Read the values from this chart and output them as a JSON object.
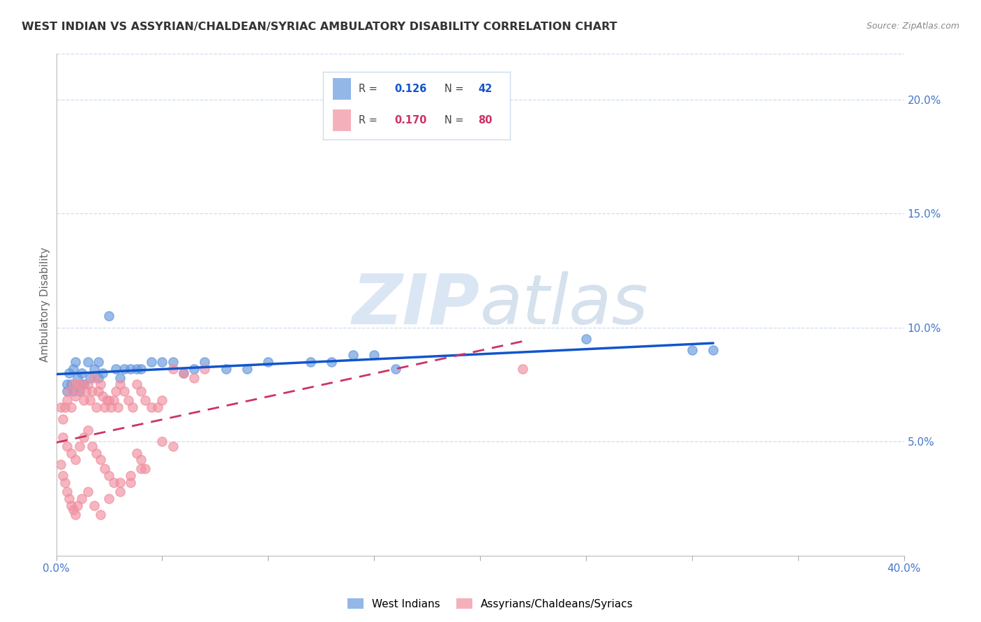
{
  "title": "WEST INDIAN VS ASSYRIAN/CHALDEAN/SYRIAC AMBULATORY DISABILITY CORRELATION CHART",
  "source": "Source: ZipAtlas.com",
  "ylabel": "Ambulatory Disability",
  "xlim": [
    0.0,
    0.4
  ],
  "ylim": [
    0.0,
    0.22
  ],
  "xtick_positions": [
    0.0,
    0.05,
    0.1,
    0.15,
    0.2,
    0.25,
    0.3,
    0.35,
    0.4
  ],
  "xtick_labels": [
    "0.0%",
    "",
    "",
    "",
    "",
    "",
    "",
    "",
    "40.0%"
  ],
  "ytick_positions": [
    0.05,
    0.1,
    0.15,
    0.2
  ],
  "ytick_labels": [
    "5.0%",
    "10.0%",
    "15.0%",
    "20.0%"
  ],
  "blue_R": "0.126",
  "blue_N": "42",
  "pink_R": "0.170",
  "pink_N": "80",
  "blue_color": "#6699dd",
  "pink_color": "#f090a0",
  "blue_line_color": "#1155cc",
  "pink_line_color": "#cc3366",
  "axis_tick_color": "#4477cc",
  "grid_color": "#ccddee",
  "background_color": "#ffffff",
  "watermark_zip": "ZIP",
  "watermark_atlas": "atlas",
  "legend_border_color": "#ccddee",
  "blue_scatter_x": [
    0.005,
    0.006,
    0.007,
    0.008,
    0.009,
    0.01,
    0.011,
    0.012,
    0.013,
    0.015,
    0.016,
    0.018,
    0.02,
    0.022,
    0.025,
    0.028,
    0.03,
    0.032,
    0.035,
    0.038,
    0.04,
    0.045,
    0.05,
    0.055,
    0.06,
    0.065,
    0.07,
    0.08,
    0.09,
    0.1,
    0.12,
    0.13,
    0.14,
    0.15,
    0.16,
    0.25,
    0.3,
    0.31,
    0.005,
    0.008,
    0.012,
    0.02
  ],
  "blue_scatter_y": [
    0.075,
    0.08,
    0.075,
    0.082,
    0.085,
    0.078,
    0.072,
    0.08,
    0.075,
    0.085,
    0.078,
    0.082,
    0.085,
    0.08,
    0.105,
    0.082,
    0.078,
    0.082,
    0.082,
    0.082,
    0.082,
    0.085,
    0.085,
    0.085,
    0.08,
    0.082,
    0.085,
    0.082,
    0.082,
    0.085,
    0.085,
    0.085,
    0.088,
    0.088,
    0.082,
    0.095,
    0.09,
    0.09,
    0.072,
    0.072,
    0.075,
    0.078
  ],
  "pink_scatter_x": [
    0.002,
    0.003,
    0.004,
    0.005,
    0.006,
    0.007,
    0.008,
    0.009,
    0.01,
    0.011,
    0.012,
    0.013,
    0.014,
    0.015,
    0.016,
    0.017,
    0.018,
    0.019,
    0.02,
    0.021,
    0.022,
    0.023,
    0.024,
    0.025,
    0.026,
    0.027,
    0.028,
    0.029,
    0.03,
    0.032,
    0.034,
    0.036,
    0.038,
    0.04,
    0.042,
    0.045,
    0.048,
    0.05,
    0.055,
    0.06,
    0.065,
    0.07,
    0.003,
    0.005,
    0.007,
    0.009,
    0.011,
    0.013,
    0.015,
    0.017,
    0.019,
    0.021,
    0.023,
    0.025,
    0.027,
    0.03,
    0.035,
    0.04,
    0.002,
    0.003,
    0.004,
    0.005,
    0.006,
    0.007,
    0.008,
    0.009,
    0.01,
    0.012,
    0.015,
    0.018,
    0.021,
    0.025,
    0.03,
    0.035,
    0.038,
    0.04,
    0.042,
    0.05,
    0.055,
    0.22
  ],
  "pink_scatter_y": [
    0.065,
    0.06,
    0.065,
    0.068,
    0.072,
    0.065,
    0.075,
    0.07,
    0.075,
    0.072,
    0.075,
    0.068,
    0.072,
    0.075,
    0.068,
    0.072,
    0.078,
    0.065,
    0.072,
    0.075,
    0.07,
    0.065,
    0.068,
    0.068,
    0.065,
    0.068,
    0.072,
    0.065,
    0.075,
    0.072,
    0.068,
    0.065,
    0.075,
    0.072,
    0.068,
    0.065,
    0.065,
    0.068,
    0.082,
    0.08,
    0.078,
    0.082,
    0.052,
    0.048,
    0.045,
    0.042,
    0.048,
    0.052,
    0.055,
    0.048,
    0.045,
    0.042,
    0.038,
    0.035,
    0.032,
    0.032,
    0.035,
    0.038,
    0.04,
    0.035,
    0.032,
    0.028,
    0.025,
    0.022,
    0.02,
    0.018,
    0.022,
    0.025,
    0.028,
    0.022,
    0.018,
    0.025,
    0.028,
    0.032,
    0.045,
    0.042,
    0.038,
    0.05,
    0.048,
    0.082
  ]
}
